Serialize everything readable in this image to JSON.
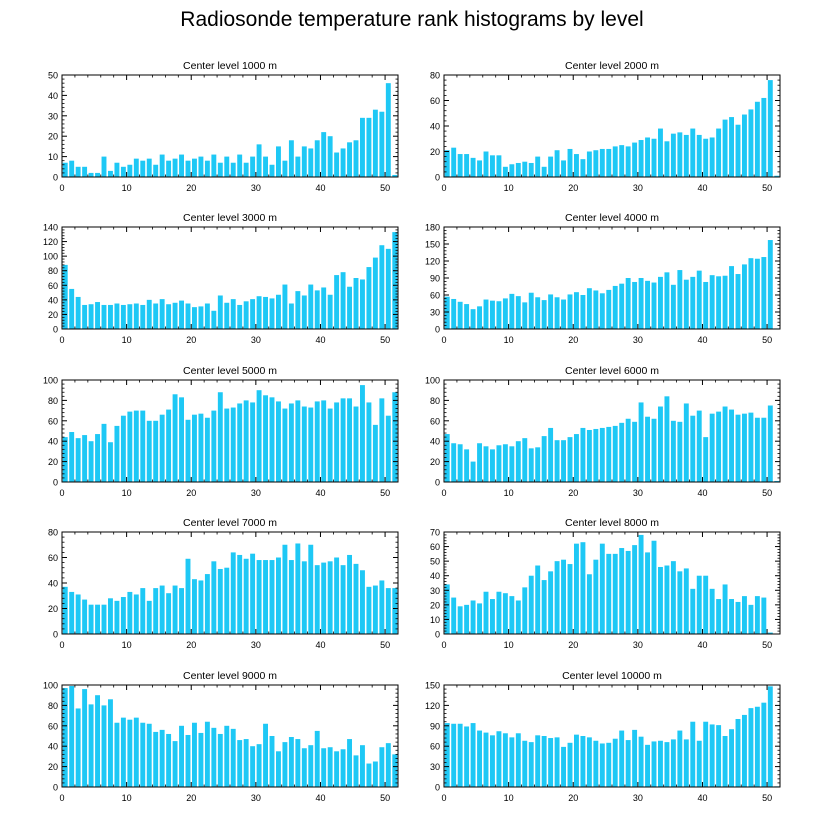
{
  "title": "Radiosonde temperature rank histograms by level",
  "bar_color": "#1ec8f5",
  "chart_data": [
    {
      "type": "bar",
      "title": "Center level 1000 m",
      "ylim": [
        0,
        50
      ],
      "yticks": [
        0,
        10,
        20,
        30,
        40,
        50
      ],
      "xlim": [
        0,
        52
      ],
      "xticks": [
        0,
        10,
        20,
        30,
        40,
        50
      ],
      "values": [
        7,
        8,
        5,
        5,
        2,
        2,
        10,
        3,
        7,
        5,
        6,
        9,
        8,
        9,
        6,
        11,
        8,
        9,
        11,
        8,
        9,
        10,
        8,
        11,
        7,
        10,
        7,
        11,
        7,
        10,
        16,
        10,
        6,
        15,
        8,
        18,
        10,
        15,
        14,
        18,
        22,
        20,
        12,
        14,
        17,
        18,
        29,
        29,
        33,
        32,
        46,
        1
      ]
    },
    {
      "type": "bar",
      "title": "Center level 2000 m",
      "ylim": [
        0,
        80
      ],
      "yticks": [
        0,
        20,
        40,
        60,
        80
      ],
      "xlim": [
        0,
        52
      ],
      "xticks": [
        0,
        10,
        20,
        30,
        40,
        50
      ],
      "values": [
        21,
        23,
        18,
        18,
        15,
        13,
        20,
        17,
        17,
        8,
        10,
        11,
        12,
        11,
        16,
        8,
        16,
        21,
        13,
        22,
        18,
        14,
        20,
        21,
        22,
        22,
        24,
        25,
        24,
        27,
        29,
        31,
        30,
        38,
        28,
        34,
        35,
        33,
        38,
        33,
        30,
        31,
        38,
        45,
        47,
        41,
        49,
        53,
        59,
        62,
        76,
        1
      ]
    },
    {
      "type": "bar",
      "title": "Center level 3000 m",
      "ylim": [
        0,
        140
      ],
      "yticks": [
        0,
        20,
        40,
        60,
        80,
        100,
        120,
        140
      ],
      "xlim": [
        0,
        52
      ],
      "xticks": [
        0,
        10,
        20,
        30,
        40,
        50
      ],
      "values": [
        88,
        55,
        44,
        33,
        34,
        37,
        33,
        33,
        35,
        33,
        34,
        35,
        33,
        40,
        35,
        41,
        34,
        36,
        39,
        35,
        30,
        31,
        35,
        25,
        46,
        36,
        41,
        33,
        38,
        41,
        45,
        44,
        42,
        47,
        61,
        35,
        52,
        46,
        61,
        53,
        57,
        47,
        74,
        78,
        58,
        70,
        68,
        85,
        98,
        115,
        110,
        133
      ]
    },
    {
      "type": "bar",
      "title": "Center level 4000 m",
      "ylim": [
        0,
        180
      ],
      "yticks": [
        0,
        30,
        60,
        90,
        120,
        150,
        180
      ],
      "xlim": [
        0,
        52
      ],
      "xticks": [
        0,
        10,
        20,
        30,
        40,
        50
      ],
      "values": [
        57,
        53,
        48,
        44,
        35,
        40,
        52,
        50,
        49,
        54,
        62,
        58,
        47,
        64,
        56,
        51,
        61,
        56,
        52,
        61,
        65,
        60,
        72,
        68,
        63,
        69,
        76,
        80,
        90,
        83,
        90,
        85,
        82,
        92,
        100,
        78,
        104,
        87,
        92,
        103,
        83,
        95,
        93,
        94,
        111,
        97,
        114,
        125,
        124,
        127,
        157,
        1
      ]
    },
    {
      "type": "bar",
      "title": "Center level 5000 m",
      "ylim": [
        0,
        100
      ],
      "yticks": [
        0,
        20,
        40,
        60,
        80,
        100
      ],
      "xlim": [
        0,
        52
      ],
      "xticks": [
        0,
        10,
        20,
        30,
        40,
        50
      ],
      "values": [
        44,
        49,
        43,
        46,
        40,
        47,
        57,
        39,
        55,
        65,
        69,
        70,
        70,
        60,
        60,
        66,
        71,
        86,
        83,
        61,
        66,
        67,
        63,
        70,
        88,
        72,
        73,
        77,
        80,
        78,
        90,
        85,
        83,
        79,
        72,
        77,
        80,
        74,
        73,
        79,
        80,
        72,
        78,
        82,
        82,
        74,
        95,
        78,
        56,
        82,
        65,
        88
      ]
    },
    {
      "type": "bar",
      "title": "Center level 6000 m",
      "ylim": [
        0,
        100
      ],
      "yticks": [
        0,
        20,
        40,
        60,
        80,
        100
      ],
      "xlim": [
        0,
        52
      ],
      "xticks": [
        0,
        10,
        20,
        30,
        40,
        50
      ],
      "values": [
        47,
        38,
        37,
        32,
        20,
        38,
        35,
        32,
        36,
        37,
        35,
        40,
        43,
        33,
        34,
        45,
        53,
        41,
        41,
        44,
        47,
        53,
        51,
        52,
        53,
        54,
        55,
        58,
        62,
        59,
        78,
        64,
        62,
        74,
        84,
        60,
        59,
        77,
        65,
        70,
        44,
        67,
        69,
        74,
        71,
        66,
        67,
        68,
        63,
        63,
        75,
        1
      ]
    },
    {
      "type": "bar",
      "title": "Center level 7000 m",
      "ylim": [
        0,
        80
      ],
      "yticks": [
        0,
        20,
        40,
        60,
        80
      ],
      "xlim": [
        0,
        52
      ],
      "xticks": [
        0,
        10,
        20,
        30,
        40,
        50
      ],
      "values": [
        37,
        33,
        31,
        27,
        23,
        23,
        23,
        28,
        26,
        29,
        33,
        31,
        36,
        26,
        36,
        38,
        32,
        38,
        36,
        59,
        43,
        42,
        47,
        57,
        51,
        52,
        64,
        62,
        59,
        63,
        58,
        58,
        58,
        60,
        70,
        58,
        71,
        57,
        70,
        54,
        56,
        57,
        60,
        54,
        62,
        55,
        50,
        37,
        38,
        42,
        36,
        36
      ]
    },
    {
      "type": "bar",
      "title": "Center level 8000 m",
      "ylim": [
        0,
        70
      ],
      "yticks": [
        0,
        10,
        20,
        30,
        40,
        50,
        60,
        70
      ],
      "xlim": [
        0,
        52
      ],
      "xticks": [
        0,
        10,
        20,
        30,
        40,
        50
      ],
      "values": [
        34,
        25,
        19,
        20,
        23,
        21,
        29,
        24,
        29,
        28,
        26,
        23,
        32,
        40,
        47,
        37,
        43,
        50,
        51,
        48,
        62,
        63,
        41,
        51,
        62,
        55,
        55,
        59,
        57,
        61,
        68,
        56,
        64,
        46,
        47,
        50,
        43,
        45,
        31,
        40,
        40,
        31,
        24,
        34,
        24,
        22,
        26,
        20,
        26,
        25,
        1
      ]
    },
    {
      "type": "bar",
      "title": "Center level 9000 m",
      "ylim": [
        0,
        100
      ],
      "yticks": [
        0,
        20,
        40,
        60,
        80,
        100
      ],
      "xlim": [
        0,
        52
      ],
      "xticks": [
        0,
        10,
        20,
        30,
        40,
        50
      ],
      "values": [
        97,
        99,
        77,
        96,
        81,
        90,
        80,
        86,
        63,
        68,
        66,
        68,
        63,
        62,
        54,
        56,
        52,
        45,
        60,
        51,
        63,
        53,
        64,
        58,
        52,
        60,
        57,
        46,
        47,
        40,
        42,
        62,
        50,
        35,
        44,
        49,
        47,
        38,
        41,
        55,
        38,
        39,
        35,
        37,
        47,
        31,
        41,
        23,
        25,
        39,
        43,
        32
      ]
    },
    {
      "type": "bar",
      "title": "Center level 10000 m",
      "ylim": [
        0,
        150
      ],
      "yticks": [
        0,
        30,
        60,
        90,
        120,
        150
      ],
      "xlim": [
        0,
        52
      ],
      "xticks": [
        0,
        10,
        20,
        30,
        40,
        50
      ],
      "values": [
        94,
        93,
        93,
        89,
        94,
        83,
        80,
        76,
        82,
        79,
        73,
        79,
        68,
        66,
        76,
        75,
        72,
        73,
        59,
        65,
        77,
        75,
        73,
        68,
        64,
        65,
        71,
        83,
        69,
        84,
        74,
        62,
        67,
        68,
        66,
        70,
        83,
        70,
        96,
        68,
        96,
        92,
        91,
        75,
        85,
        100,
        106,
        116,
        118,
        124,
        148,
        1
      ]
    }
  ]
}
